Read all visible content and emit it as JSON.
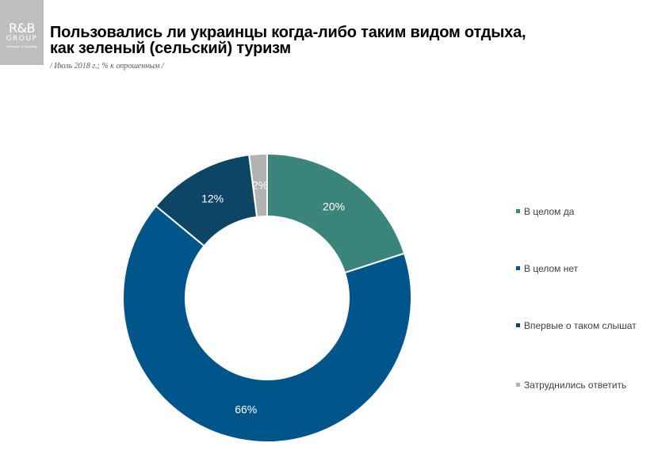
{
  "logo": {
    "main": "R&B",
    "group": "GROUP",
    "sub": "Research & Branding"
  },
  "header": {
    "title_line1": "Пользовались ли украинцы когда-либо таким видом отдыха,",
    "title_line2": "как зеленый (сельский) туризм",
    "subtitle": "/ Июль 2018 г.; % к опрошенным /"
  },
  "chart_data": {
    "type": "pie",
    "donut": true,
    "unit": "%",
    "start": "top, clockwise",
    "legend_position": "right",
    "series": [
      {
        "name": "В целом да",
        "value": 20,
        "label": "20%",
        "color": "#3a847b"
      },
      {
        "name": "В целом нет",
        "value": 66,
        "label": "66%",
        "color": "#00568a"
      },
      {
        "name": "Впервые о таком слышат",
        "value": 12,
        "label": "12%",
        "color": "#0c4565"
      },
      {
        "name": "Затруднились ответить",
        "value": 2,
        "label": "2%",
        "color": "#b3b3b3"
      }
    ]
  },
  "legend": {
    "items": [
      "В целом да",
      "В целом нет",
      "Впервые о таком слышат",
      "Затруднились ответить"
    ]
  }
}
